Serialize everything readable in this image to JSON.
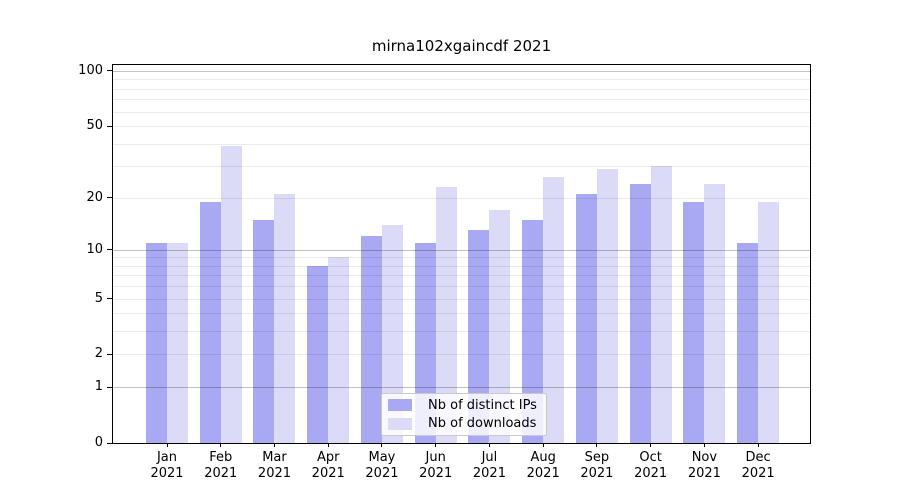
{
  "title": "mirna102xgaincdf 2021",
  "chart_data": {
    "type": "bar",
    "title": "mirna102xgaincdf 2021",
    "categories": [
      "Jan",
      "Feb",
      "Mar",
      "Apr",
      "May",
      "Jun",
      "Jul",
      "Aug",
      "Sep",
      "Oct",
      "Nov",
      "Dec"
    ],
    "year": "2021",
    "series": [
      {
        "name": "Nb of distinct IPs",
        "color": "#a9a9f3",
        "values": [
          11,
          19,
          15,
          8,
          12,
          11,
          13,
          15,
          21,
          24,
          19,
          11
        ]
      },
      {
        "name": "Nb of downloads",
        "color": "#dbdbf7",
        "values": [
          11,
          39,
          21,
          9,
          14,
          23,
          17,
          26,
          29,
          30,
          24,
          19
        ]
      }
    ],
    "yticks": [
      0,
      1,
      2,
      5,
      10,
      20,
      50,
      100
    ],
    "major_gridlines": [
      1,
      10,
      100
    ],
    "minor_gridlines": [
      2,
      3,
      4,
      5,
      6,
      7,
      8,
      9,
      20,
      30,
      40,
      50,
      60,
      70,
      80,
      90
    ],
    "y_scale": "log10(value+1)",
    "ylim": [
      0,
      108
    ],
    "xlabel": "",
    "ylabel": "",
    "grid": true,
    "legend_position": "lower center"
  }
}
